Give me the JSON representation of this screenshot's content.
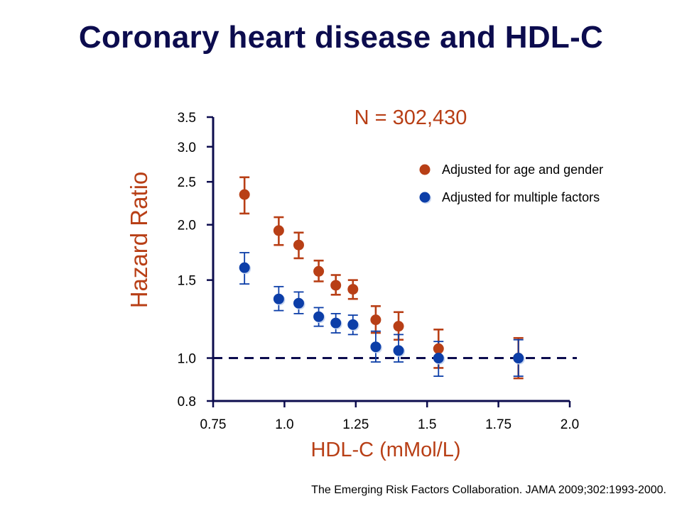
{
  "slide": {
    "title": "Coronary heart disease and HDL-C",
    "citation": "The Emerging Risk Factors Collaboration. JAMA 2009;302:1993-2000."
  },
  "chart_data": {
    "type": "scatter",
    "annotation": "N = 302,430",
    "xlabel": "HDL-C (mMol/L)",
    "ylabel": "Hazard Ratio",
    "xlim": [
      0.75,
      2.0
    ],
    "ylim": [
      0.8,
      3.5
    ],
    "yscale": "log",
    "x_ticks": [
      "0.75",
      "1.0",
      "1.25",
      "1.5",
      "1.75",
      "2.0"
    ],
    "y_ticks": [
      "0.8",
      "1.0",
      "1.5",
      "2.0",
      "2.5",
      "3.0",
      "3.5"
    ],
    "reference_line": {
      "y": 1.0,
      "style": "dashed"
    },
    "legend_position": "top-right",
    "series": [
      {
        "name": "Adjusted for age and gender",
        "color": "#b83f16",
        "points": [
          {
            "x": 0.86,
            "y": 2.34,
            "lo": 2.12,
            "hi": 2.56
          },
          {
            "x": 0.98,
            "y": 1.94,
            "lo": 1.8,
            "hi": 2.08
          },
          {
            "x": 1.05,
            "y": 1.8,
            "lo": 1.68,
            "hi": 1.92
          },
          {
            "x": 1.12,
            "y": 1.57,
            "lo": 1.49,
            "hi": 1.66
          },
          {
            "x": 1.18,
            "y": 1.46,
            "lo": 1.39,
            "hi": 1.54
          },
          {
            "x": 1.24,
            "y": 1.43,
            "lo": 1.36,
            "hi": 1.5
          },
          {
            "x": 1.32,
            "y": 1.22,
            "lo": 1.14,
            "hi": 1.31
          },
          {
            "x": 1.4,
            "y": 1.18,
            "lo": 1.1,
            "hi": 1.27
          },
          {
            "x": 1.54,
            "y": 1.05,
            "lo": 0.95,
            "hi": 1.16
          },
          {
            "x": 1.82,
            "y": 1.0,
            "lo": 0.9,
            "hi": 1.11
          }
        ]
      },
      {
        "name": "Adjusted for multiple factors",
        "color": "#0c3ea8",
        "points": [
          {
            "x": 0.86,
            "y": 1.6,
            "lo": 1.47,
            "hi": 1.73
          },
          {
            "x": 0.98,
            "y": 1.36,
            "lo": 1.28,
            "hi": 1.45
          },
          {
            "x": 1.05,
            "y": 1.33,
            "lo": 1.26,
            "hi": 1.41
          },
          {
            "x": 1.12,
            "y": 1.24,
            "lo": 1.18,
            "hi": 1.3
          },
          {
            "x": 1.18,
            "y": 1.2,
            "lo": 1.14,
            "hi": 1.26
          },
          {
            "x": 1.24,
            "y": 1.19,
            "lo": 1.13,
            "hi": 1.25
          },
          {
            "x": 1.32,
            "y": 1.06,
            "lo": 0.98,
            "hi": 1.15
          },
          {
            "x": 1.4,
            "y": 1.04,
            "lo": 0.98,
            "hi": 1.13
          },
          {
            "x": 1.54,
            "y": 1.0,
            "lo": 0.91,
            "hi": 1.09
          },
          {
            "x": 1.82,
            "y": 1.0,
            "lo": 0.91,
            "hi": 1.1
          }
        ]
      }
    ]
  }
}
